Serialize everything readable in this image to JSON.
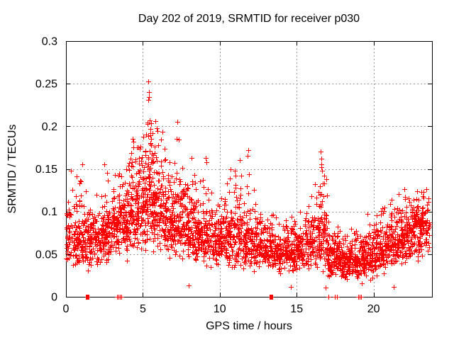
{
  "chart_data": {
    "type": "scatter",
    "title": "Day 202 of 2019, SRMTID for receiver p030",
    "xlabel": "GPS time / hours",
    "ylabel": "SRMTID / TECUs",
    "xlim": [
      0,
      23.8
    ],
    "ylim": [
      0,
      0.3
    ],
    "x_ticks": [
      0,
      5,
      10,
      15,
      20
    ],
    "x_tick_labels": [
      "0",
      "5",
      "10",
      "15",
      "20"
    ],
    "y_ticks": [
      0,
      0.05,
      0.1,
      0.15,
      0.2,
      0.25,
      0.3
    ],
    "y_tick_labels": [
      "0",
      "0.05",
      "0.1",
      "0.15",
      "0.2",
      "0.25",
      "0.3"
    ],
    "grid": true,
    "legend": "none",
    "marker": "plus",
    "marker_color": "#ff0000",
    "grid_color": "#999999",
    "axis_color": "#000000",
    "background": "#ffffff",
    "series_name": "SRMTID",
    "seed": 1234567,
    "density_bins_format": [
      "x_start",
      "x_end",
      "count",
      "mode_tecu",
      "log_sigma",
      "y_min",
      "y_max"
    ],
    "density_bins": [
      [
        0.0,
        0.3,
        36,
        0.075,
        0.3,
        0.035,
        0.13
      ],
      [
        0.3,
        1.0,
        82,
        0.07,
        0.3,
        0.032,
        0.15
      ],
      [
        1.0,
        1.5,
        62,
        0.065,
        0.28,
        0.03,
        0.148
      ],
      [
        1.5,
        2.0,
        62,
        0.068,
        0.26,
        0.033,
        0.12
      ],
      [
        2.0,
        2.5,
        66,
        0.07,
        0.27,
        0.035,
        0.13
      ],
      [
        2.5,
        3.0,
        66,
        0.075,
        0.28,
        0.038,
        0.15
      ],
      [
        3.0,
        3.5,
        70,
        0.082,
        0.28,
        0.04,
        0.145
      ],
      [
        3.5,
        4.0,
        70,
        0.09,
        0.28,
        0.042,
        0.16
      ],
      [
        4.0,
        4.5,
        76,
        0.1,
        0.29,
        0.045,
        0.19
      ],
      [
        4.5,
        5.0,
        80,
        0.11,
        0.29,
        0.05,
        0.195
      ],
      [
        5.0,
        5.5,
        86,
        0.12,
        0.3,
        0.052,
        0.21
      ],
      [
        5.5,
        6.0,
        86,
        0.115,
        0.3,
        0.05,
        0.21
      ],
      [
        6.0,
        6.5,
        80,
        0.105,
        0.3,
        0.05,
        0.195
      ],
      [
        6.5,
        7.0,
        76,
        0.095,
        0.3,
        0.045,
        0.17
      ],
      [
        7.0,
        7.5,
        76,
        0.09,
        0.3,
        0.042,
        0.185
      ],
      [
        7.5,
        8.0,
        70,
        0.085,
        0.3,
        0.038,
        0.155
      ],
      [
        8.0,
        8.5,
        70,
        0.08,
        0.3,
        0.035,
        0.165
      ],
      [
        8.5,
        9.0,
        66,
        0.075,
        0.29,
        0.032,
        0.15
      ],
      [
        9.0,
        9.5,
        66,
        0.073,
        0.29,
        0.032,
        0.16
      ],
      [
        9.5,
        10.0,
        66,
        0.07,
        0.28,
        0.03,
        0.14
      ],
      [
        10.0,
        10.5,
        66,
        0.07,
        0.28,
        0.03,
        0.14
      ],
      [
        10.5,
        11.0,
        66,
        0.072,
        0.29,
        0.03,
        0.15
      ],
      [
        11.0,
        11.5,
        66,
        0.072,
        0.3,
        0.03,
        0.16
      ],
      [
        11.5,
        12.0,
        66,
        0.07,
        0.3,
        0.03,
        0.168
      ],
      [
        12.0,
        12.5,
        60,
        0.063,
        0.28,
        0.028,
        0.13
      ],
      [
        12.5,
        13.0,
        60,
        0.058,
        0.27,
        0.025,
        0.11
      ],
      [
        13.0,
        13.5,
        60,
        0.055,
        0.27,
        0.022,
        0.105
      ],
      [
        13.5,
        14.0,
        60,
        0.053,
        0.26,
        0.02,
        0.1
      ],
      [
        14.0,
        14.5,
        60,
        0.053,
        0.26,
        0.018,
        0.095
      ],
      [
        14.5,
        15.0,
        60,
        0.054,
        0.26,
        0.02,
        0.1
      ],
      [
        15.0,
        15.5,
        60,
        0.058,
        0.27,
        0.022,
        0.11
      ],
      [
        15.5,
        16.0,
        60,
        0.063,
        0.28,
        0.027,
        0.125
      ],
      [
        16.0,
        16.5,
        62,
        0.068,
        0.3,
        0.03,
        0.142
      ],
      [
        16.5,
        17.0,
        68,
        0.075,
        0.35,
        0.022,
        0.158
      ],
      [
        17.0,
        17.5,
        70,
        0.048,
        0.3,
        0.02,
        0.1
      ],
      [
        17.5,
        18.0,
        72,
        0.044,
        0.29,
        0.018,
        0.09
      ],
      [
        18.0,
        18.5,
        72,
        0.042,
        0.29,
        0.018,
        0.085
      ],
      [
        18.5,
        19.0,
        72,
        0.044,
        0.29,
        0.019,
        0.09
      ],
      [
        19.0,
        19.5,
        68,
        0.047,
        0.29,
        0.016,
        0.095
      ],
      [
        19.5,
        20.0,
        66,
        0.05,
        0.28,
        0.02,
        0.1
      ],
      [
        20.0,
        20.5,
        66,
        0.054,
        0.28,
        0.024,
        0.105
      ],
      [
        20.5,
        21.0,
        66,
        0.058,
        0.28,
        0.026,
        0.11
      ],
      [
        21.0,
        21.5,
        66,
        0.064,
        0.28,
        0.03,
        0.12
      ],
      [
        21.5,
        22.0,
        70,
        0.07,
        0.27,
        0.035,
        0.126
      ],
      [
        22.0,
        22.5,
        70,
        0.074,
        0.26,
        0.04,
        0.12
      ],
      [
        22.5,
        23.0,
        76,
        0.079,
        0.26,
        0.042,
        0.125
      ],
      [
        23.0,
        23.65,
        80,
        0.083,
        0.25,
        0.045,
        0.13
      ]
    ],
    "feature_points": [
      [
        0.3,
        0.148
      ],
      [
        0.9,
        0.136
      ],
      [
        1.05,
        0.155
      ],
      [
        2.5,
        0.155
      ],
      [
        2.7,
        0.136
      ],
      [
        3.2,
        0.143
      ],
      [
        4.33,
        0.185
      ],
      [
        4.4,
        0.175
      ],
      [
        5.2,
        0.19
      ],
      [
        5.35,
        0.253
      ],
      [
        5.37,
        0.231
      ],
      [
        5.38,
        0.24
      ],
      [
        5.4,
        0.234
      ],
      [
        5.44,
        0.207
      ],
      [
        5.48,
        0.192
      ],
      [
        5.55,
        0.185
      ],
      [
        5.9,
        0.198
      ],
      [
        6.27,
        0.194
      ],
      [
        7.19,
        0.185
      ],
      [
        7.23,
        0.205
      ],
      [
        8.0,
        0.013
      ],
      [
        8.16,
        0.163
      ],
      [
        9.1,
        0.163
      ],
      [
        9.15,
        0.158
      ],
      [
        10.7,
        0.15
      ],
      [
        11.3,
        0.16
      ],
      [
        11.8,
        0.165
      ],
      [
        11.84,
        0.172
      ],
      [
        14.6,
        0.012
      ],
      [
        16.55,
        0.17
      ],
      [
        16.6,
        0.162
      ],
      [
        16.62,
        0.155
      ],
      [
        16.65,
        0.148
      ],
      [
        16.9,
        0.011
      ],
      [
        19.25,
        0.016
      ],
      [
        19.8,
        0.02
      ],
      [
        21.3,
        0.012
      ],
      [
        21.98,
        0.126
      ],
      [
        22.8,
        0.115
      ],
      [
        23.2,
        0.118
      ]
    ],
    "zero_axis_marks": {
      "square_x": [
        1.38,
        13.35
      ],
      "bar_x": [
        3.3,
        3.42,
        3.52,
        3.62,
        17.05,
        17.5,
        17.6,
        19.0,
        19.1,
        19.2
      ]
    }
  }
}
